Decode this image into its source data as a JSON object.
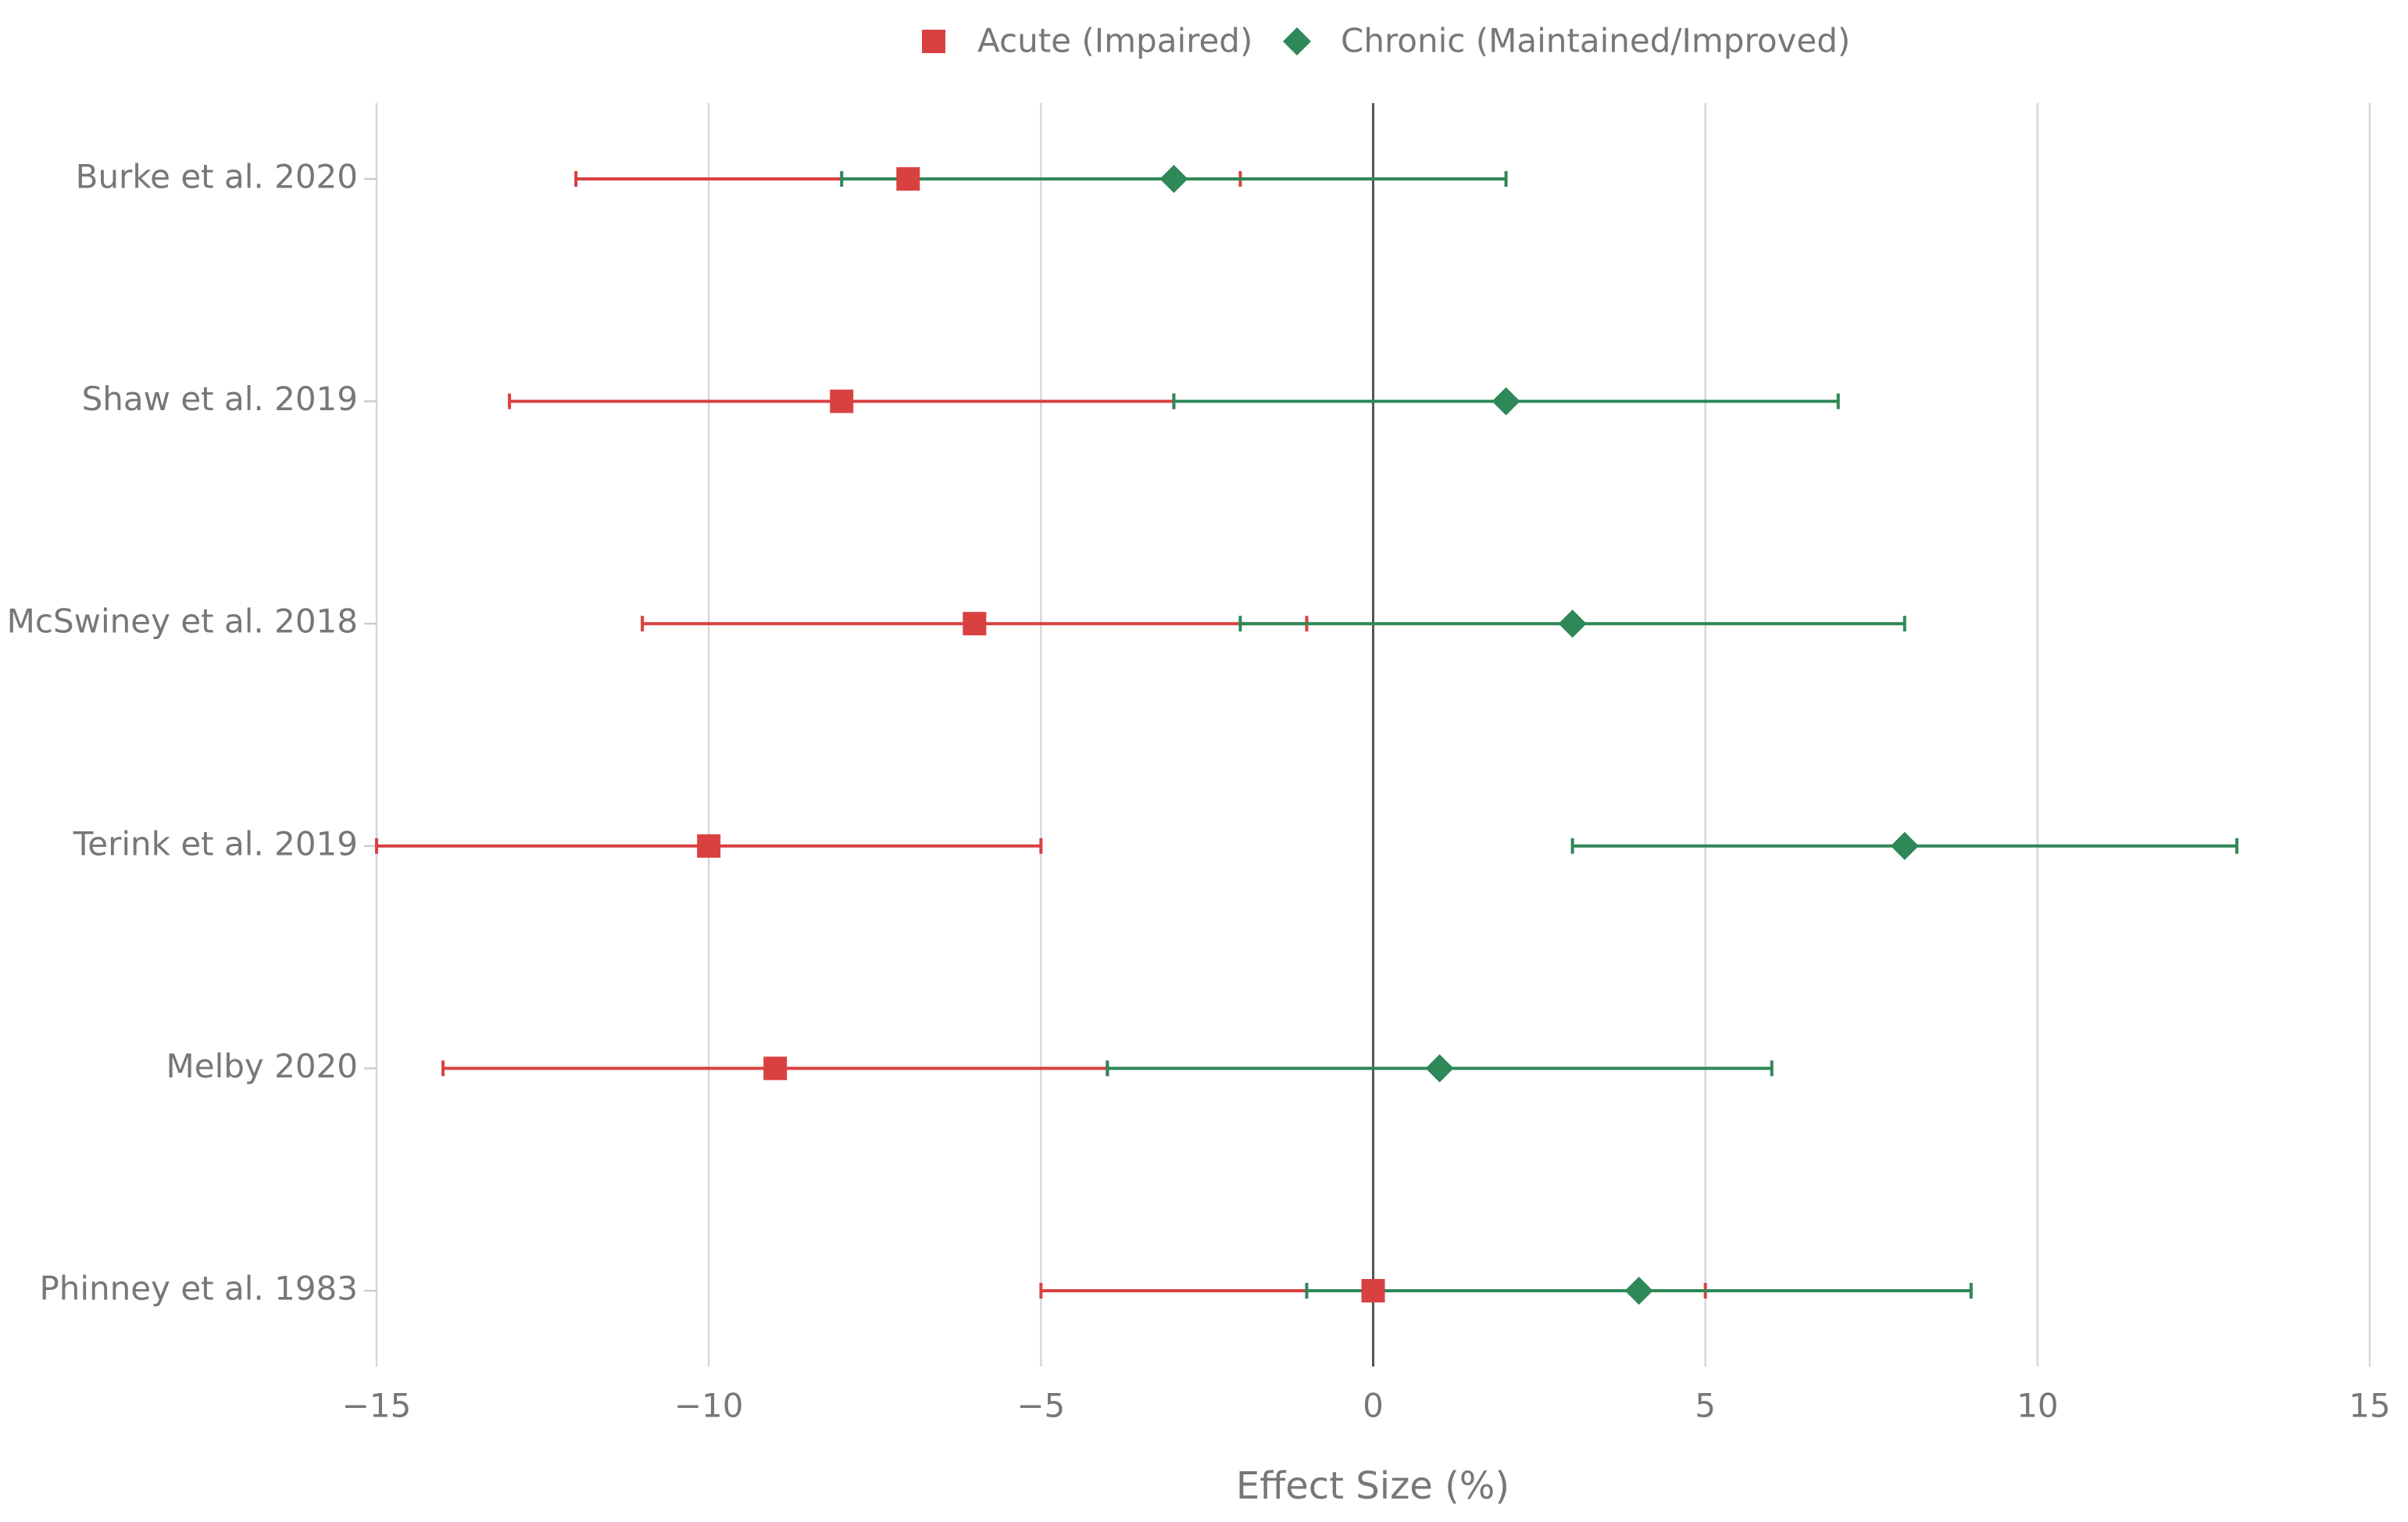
{
  "chart_data": {
    "type": "forest",
    "x_label": "Effect Size (%)",
    "categories": [
      "Burke et al. 2020",
      "Shaw et al. 2019",
      "McSwiney et al. 2018",
      "Terink et al. 2019",
      "Melby 2020",
      "Phinney et al. 1983"
    ],
    "series": [
      {
        "name": "Acute (Impaired)",
        "color": "#d94141",
        "marker": "square",
        "values": [
          -7,
          -8,
          -6,
          -10,
          -9,
          0
        ],
        "errors": [
          5,
          5,
          5,
          5,
          5,
          5
        ]
      },
      {
        "name": "Chronic (Maintained/Improved)",
        "color": "#2e8857",
        "marker": "diamond",
        "values": [
          -3,
          2,
          3,
          8,
          1,
          4
        ],
        "errors": [
          5,
          5,
          5,
          5,
          5,
          5
        ]
      }
    ],
    "xlim": [
      -15,
      15
    ],
    "xticks": [
      {
        "value": -15,
        "label": "−15"
      },
      {
        "value": -10,
        "label": "−10"
      },
      {
        "value": -5,
        "label": "−5"
      },
      0,
      5,
      10,
      15
    ],
    "grid": true,
    "legend": "top"
  }
}
